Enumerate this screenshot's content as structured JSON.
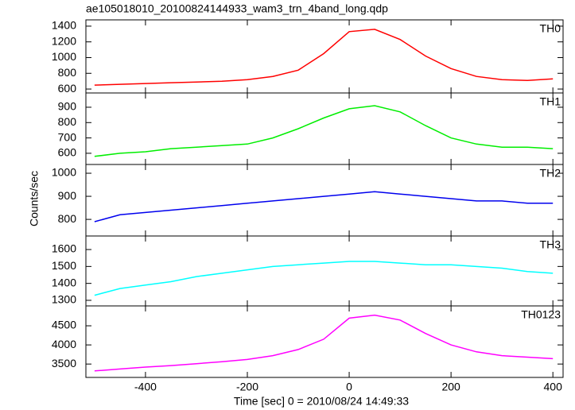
{
  "title": "ae105018010_20100824144933_wam3_trn_4band_long.qdp",
  "xlabel": "Time [sec] 0 = 2010/08/24 14:49:33",
  "ylabel": "Counts/sec",
  "chart_data": [
    {
      "type": "line",
      "x": [
        -500,
        -450,
        -400,
        -350,
        -300,
        -250,
        -200,
        -150,
        -100,
        -50,
        0,
        50,
        100,
        150,
        200,
        250,
        300,
        350,
        400
      ],
      "xlim": [
        -517,
        420
      ],
      "xticks": [
        -400,
        -200,
        0,
        200,
        400
      ],
      "ylim": [
        550,
        1480
      ],
      "yticks": [
        600,
        800,
        1000,
        1200,
        1400
      ],
      "series": [
        {
          "name": "TH0",
          "color": "#ff0000",
          "values": [
            650,
            660,
            670,
            680,
            690,
            700,
            720,
            760,
            840,
            1050,
            1330,
            1360,
            1230,
            1020,
            860,
            760,
            720,
            710,
            730
          ]
        }
      ]
    },
    {
      "type": "line",
      "x": [
        -500,
        -450,
        -400,
        -350,
        -300,
        -250,
        -200,
        -150,
        -100,
        -50,
        0,
        50,
        100,
        150,
        200,
        250,
        300,
        350,
        400
      ],
      "xlim": [
        -517,
        420
      ],
      "xticks": [
        -400,
        -200,
        0,
        200,
        400
      ],
      "ylim": [
        527,
        993
      ],
      "yticks": [
        600,
        700,
        800,
        900
      ],
      "series": [
        {
          "name": "TH1",
          "color": "#00ee00",
          "values": [
            580,
            600,
            610,
            630,
            640,
            650,
            660,
            700,
            760,
            830,
            890,
            910,
            870,
            780,
            700,
            660,
            640,
            640,
            630
          ]
        }
      ]
    },
    {
      "type": "line",
      "x": [
        -500,
        -450,
        -400,
        -350,
        -300,
        -250,
        -200,
        -150,
        -100,
        -50,
        0,
        50,
        100,
        150,
        200,
        250,
        300,
        350,
        400
      ],
      "xlim": [
        -517,
        420
      ],
      "xticks": [
        -400,
        -200,
        0,
        200,
        400
      ],
      "ylim": [
        728,
        1038
      ],
      "yticks": [
        800,
        900,
        1000
      ],
      "series": [
        {
          "name": "TH2",
          "color": "#0000ee",
          "values": [
            790,
            820,
            830,
            840,
            850,
            860,
            870,
            880,
            890,
            900,
            910,
            920,
            910,
            900,
            890,
            880,
            880,
            870,
            870
          ]
        }
      ]
    },
    {
      "type": "line",
      "x": [
        -500,
        -450,
        -400,
        -350,
        -300,
        -250,
        -200,
        -150,
        -100,
        -50,
        0,
        50,
        100,
        150,
        200,
        250,
        300,
        350,
        400
      ],
      "xlim": [
        -517,
        420
      ],
      "xticks": [
        -400,
        -200,
        0,
        200,
        400
      ],
      "ylim": [
        1267,
        1680
      ],
      "yticks": [
        1300,
        1400,
        1500,
        1600
      ],
      "series": [
        {
          "name": "TH3",
          "color": "#00ffff",
          "values": [
            1330,
            1370,
            1390,
            1410,
            1440,
            1460,
            1480,
            1500,
            1510,
            1520,
            1530,
            1530,
            1520,
            1510,
            1510,
            1500,
            1490,
            1470,
            1460
          ]
        }
      ]
    },
    {
      "type": "line",
      "x": [
        -500,
        -450,
        -400,
        -350,
        -300,
        -250,
        -200,
        -150,
        -100,
        -50,
        0,
        50,
        100,
        150,
        200,
        250,
        300,
        350,
        400
      ],
      "xlim": [
        -517,
        420
      ],
      "xticks": [
        -400,
        -200,
        0,
        200,
        400
      ],
      "ylim": [
        3150,
        5020
      ],
      "yticks": [
        3500,
        4000,
        4500
      ],
      "series": [
        {
          "name": "TH0123",
          "color": "#ff00ff",
          "values": [
            3320,
            3370,
            3420,
            3460,
            3510,
            3560,
            3620,
            3720,
            3880,
            4150,
            4700,
            4780,
            4650,
            4300,
            4000,
            3820,
            3720,
            3680,
            3640
          ]
        }
      ]
    }
  ]
}
